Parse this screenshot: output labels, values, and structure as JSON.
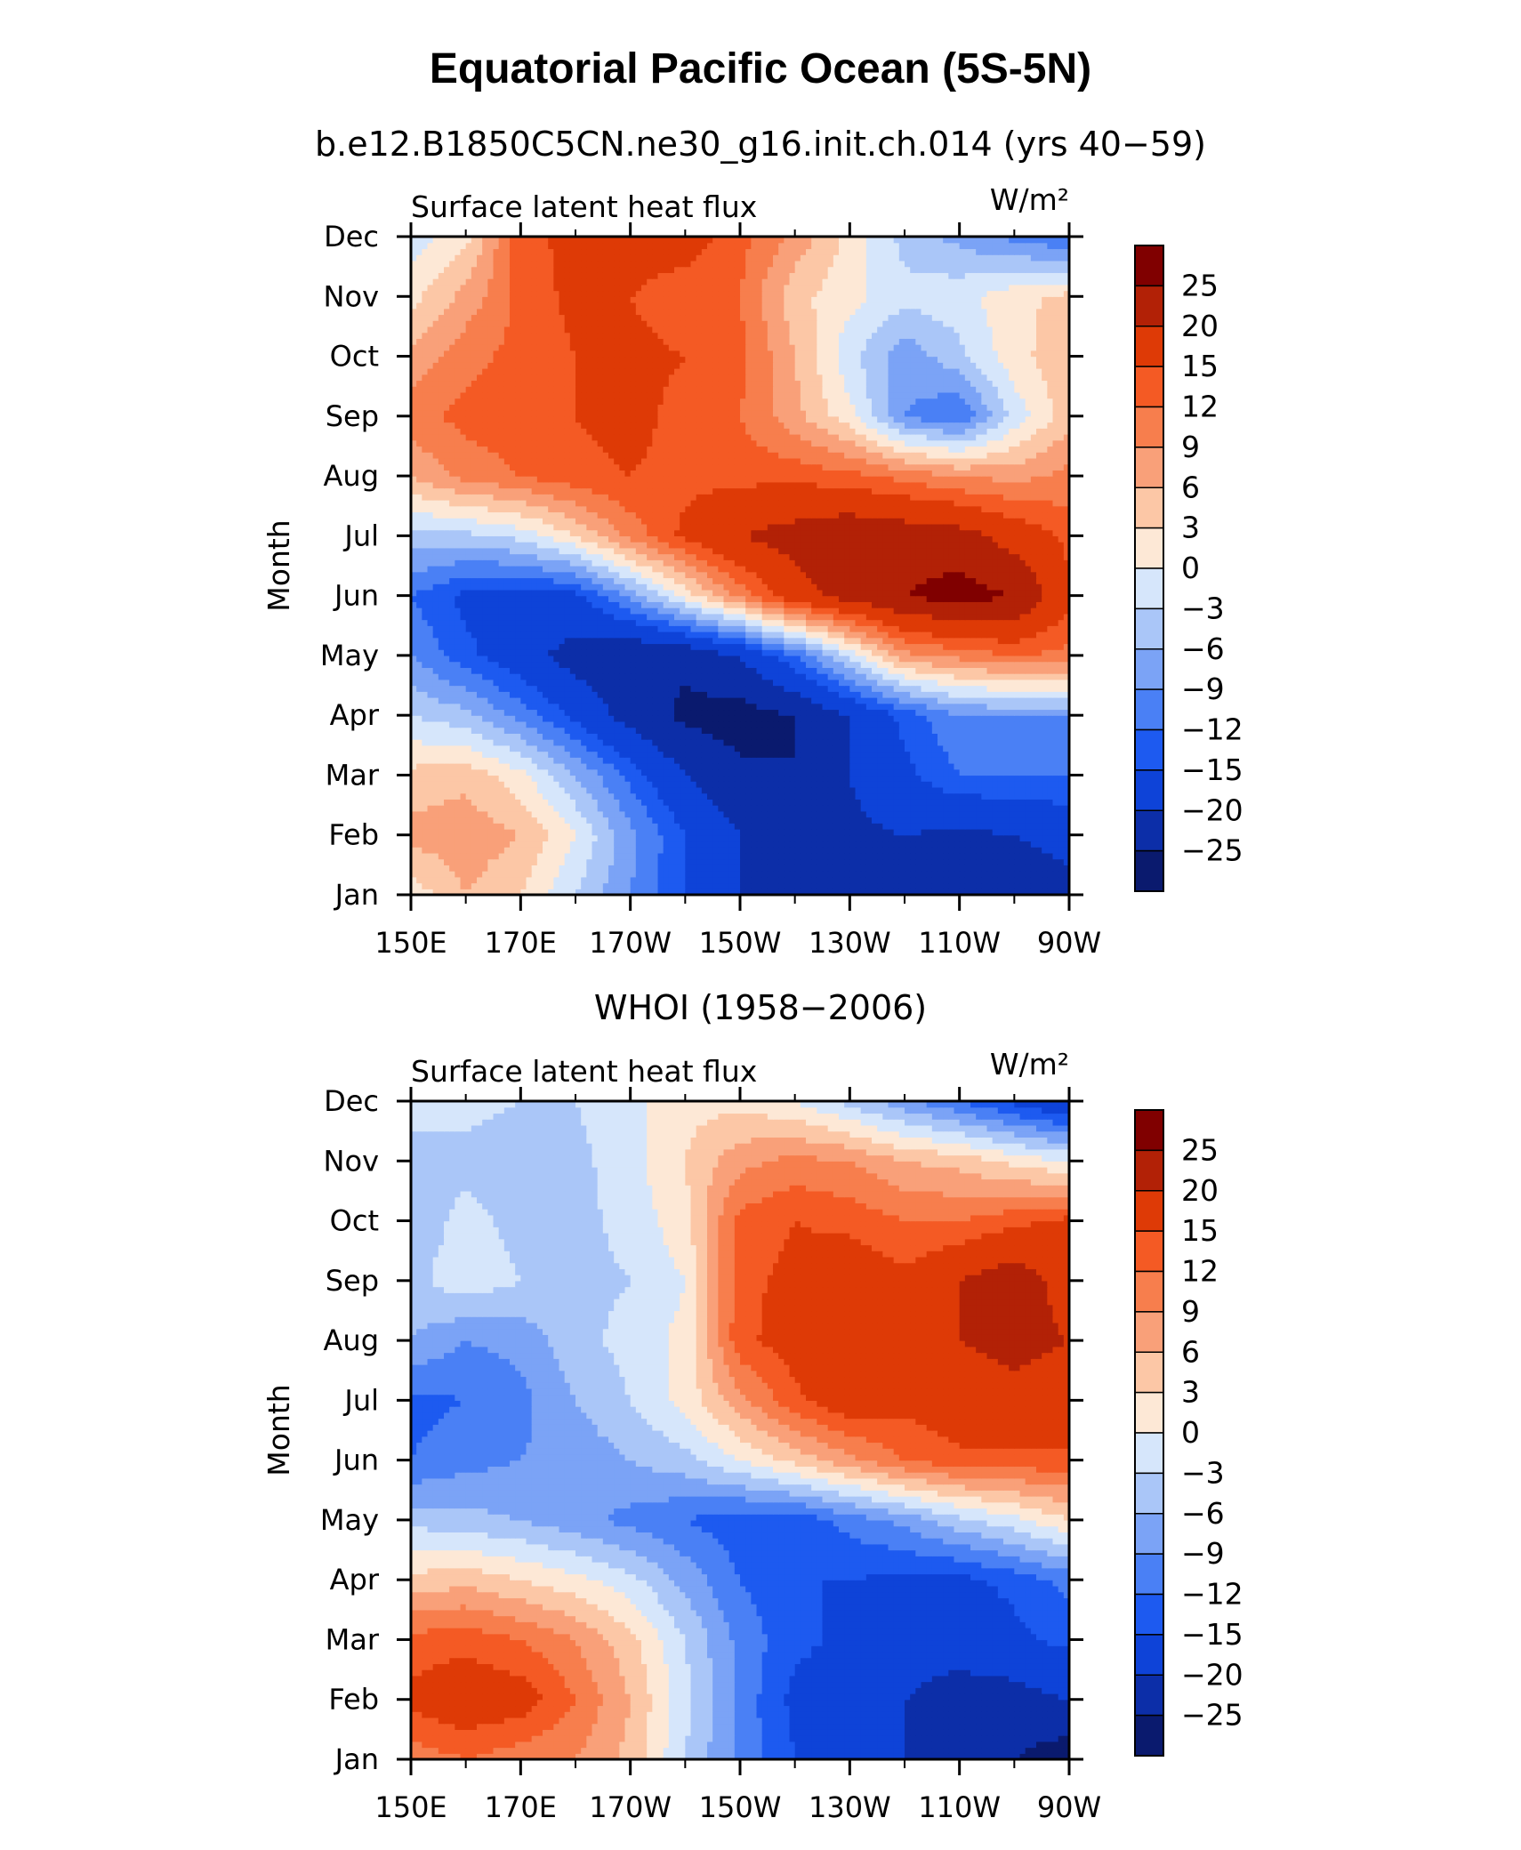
{
  "title": "Equatorial Pacific Ocean (5S-5N)",
  "chart_data": [
    {
      "type": "heatmap",
      "subtitle": "b.e12.B1850C5CN.ne30_g16.init.ch.014 (yrs 40−59)",
      "left_label": "Surface latent heat flux",
      "units": "W/m²",
      "ylabel": "Month",
      "x_ticks": [
        "150E",
        "170E",
        "170W",
        "150W",
        "130W",
        "110W",
        "90W"
      ],
      "y_ticks": [
        "Jan",
        "Feb",
        "Mar",
        "Apr",
        "May",
        "Jun",
        "Jul",
        "Aug",
        "Sep",
        "Oct",
        "Nov",
        "Dec"
      ],
      "colorbar_ticks": [
        "25",
        "20",
        "15",
        "12",
        "9",
        "6",
        "3",
        "0",
        "−3",
        "−6",
        "−9",
        "−12",
        "−15",
        "−20",
        "−25"
      ],
      "longitudes": [
        150,
        160,
        170,
        180,
        190,
        200,
        210,
        220,
        230,
        240,
        250,
        260,
        270
      ],
      "months": [
        "Jan",
        "Feb",
        "Mar",
        "Apr",
        "May",
        "Jun",
        "Jul",
        "Aug",
        "Sep",
        "Oct",
        "Nov",
        "Dec"
      ],
      "values": [
        [
          1,
          6,
          3,
          -3,
          -9,
          -15,
          -20,
          -22,
          -20,
          -20,
          -22,
          -24,
          -22
        ],
        [
          7,
          8,
          6,
          0,
          -8,
          -15,
          -20,
          -22,
          -21,
          -20,
          -21,
          -20,
          -18
        ],
        [
          4,
          5,
          1,
          -6,
          -13,
          -20,
          -24,
          -25,
          -20,
          -16,
          -12,
          -12,
          -12
        ],
        [
          -3,
          -5,
          -10,
          -16,
          -22,
          -26,
          -27,
          -25,
          -20,
          -14,
          -9,
          -9,
          -9
        ],
        [
          -9,
          -14,
          -18,
          -22,
          -25,
          -24,
          -20,
          -12,
          -2,
          8,
          10,
          12,
          11
        ],
        [
          -12,
          -16,
          -17,
          -16,
          -8,
          1,
          10,
          18,
          22,
          25,
          27,
          25,
          16
        ],
        [
          -4,
          -4,
          -2,
          3,
          10,
          16,
          20,
          22,
          24,
          23,
          22,
          18,
          14
        ],
        [
          6,
          10,
          12,
          14,
          15,
          14,
          14,
          14,
          13,
          11,
          9,
          8,
          10
        ],
        [
          11,
          13,
          14,
          15,
          16,
          14,
          12,
          7,
          1,
          -9,
          -12,
          -2,
          5
        ],
        [
          7,
          11,
          13,
          15,
          16,
          15,
          13,
          6,
          -2,
          -8,
          -4,
          2,
          5
        ],
        [
          2,
          7,
          13,
          16,
          15,
          13,
          12,
          4,
          1,
          -2,
          -1,
          2,
          4
        ],
        [
          -2,
          2,
          14,
          16,
          17,
          17,
          13,
          8,
          2,
          -4,
          -7,
          -10,
          -12
        ]
      ]
    },
    {
      "type": "heatmap",
      "subtitle": "WHOI (1958−2006)",
      "left_label": "Surface latent heat flux",
      "units": "W/m²",
      "ylabel": "Month",
      "x_ticks": [
        "150E",
        "170E",
        "170W",
        "150W",
        "130W",
        "110W",
        "90W"
      ],
      "y_ticks": [
        "Jan",
        "Feb",
        "Mar",
        "Apr",
        "May",
        "Jun",
        "Jul",
        "Aug",
        "Sep",
        "Oct",
        "Nov",
        "Dec"
      ],
      "colorbar_ticks": [
        "25",
        "20",
        "15",
        "12",
        "9",
        "6",
        "3",
        "0",
        "−3",
        "−6",
        "−9",
        "−12",
        "−15",
        "−20",
        "−25"
      ],
      "longitudes": [
        150,
        160,
        170,
        180,
        190,
        200,
        210,
        220,
        230,
        240,
        250,
        260,
        270
      ],
      "months": [
        "Jan",
        "Feb",
        "Mar",
        "Apr",
        "May",
        "Jun",
        "Jul",
        "Aug",
        "Sep",
        "Oct",
        "Nov",
        "Dec"
      ],
      "values": [
        [
          10,
          12,
          10,
          9,
          5,
          -3,
          -10,
          -15,
          -18,
          -20,
          -22,
          -25,
          -28
        ],
        [
          16,
          18,
          17,
          12,
          6,
          -2,
          -10,
          -16,
          -18,
          -20,
          -22,
          -22,
          -20
        ],
        [
          13,
          14,
          12,
          9,
          4,
          -3,
          -10,
          -14,
          -16,
          -18,
          -18,
          -16,
          -14
        ],
        [
          4,
          5,
          3,
          1,
          -2,
          -7,
          -12,
          -15,
          -15,
          -16,
          -16,
          -14,
          -11
        ],
        [
          -4,
          -5,
          -6,
          -8,
          -10,
          -12,
          -14,
          -14,
          -11,
          -8,
          -4,
          -1,
          3
        ],
        [
          -12,
          -10,
          -9,
          -8,
          -6,
          -4,
          0,
          4,
          8,
          12,
          14,
          14,
          14
        ],
        [
          -13,
          -12,
          -10,
          -6,
          -3,
          1,
          8,
          14,
          18,
          16,
          18,
          19,
          18
        ],
        [
          -6,
          -9,
          -8,
          -4,
          -2,
          1,
          14,
          17,
          20,
          17,
          20,
          21,
          20
        ],
        [
          -4,
          -1,
          -3,
          -4,
          -3,
          0,
          14,
          16,
          18,
          16,
          20,
          23,
          18
        ],
        [
          -5,
          -2,
          -4,
          -4,
          -2,
          2,
          13,
          15,
          14,
          12,
          12,
          14,
          16
        ],
        [
          -4,
          -4,
          -5,
          -4,
          -1,
          3,
          8,
          10,
          9,
          6,
          5,
          2,
          0
        ],
        [
          -2,
          -2,
          -3,
          -3,
          -1,
          2,
          2,
          0,
          -4,
          -8,
          -12,
          -16,
          -20
        ]
      ]
    }
  ]
}
